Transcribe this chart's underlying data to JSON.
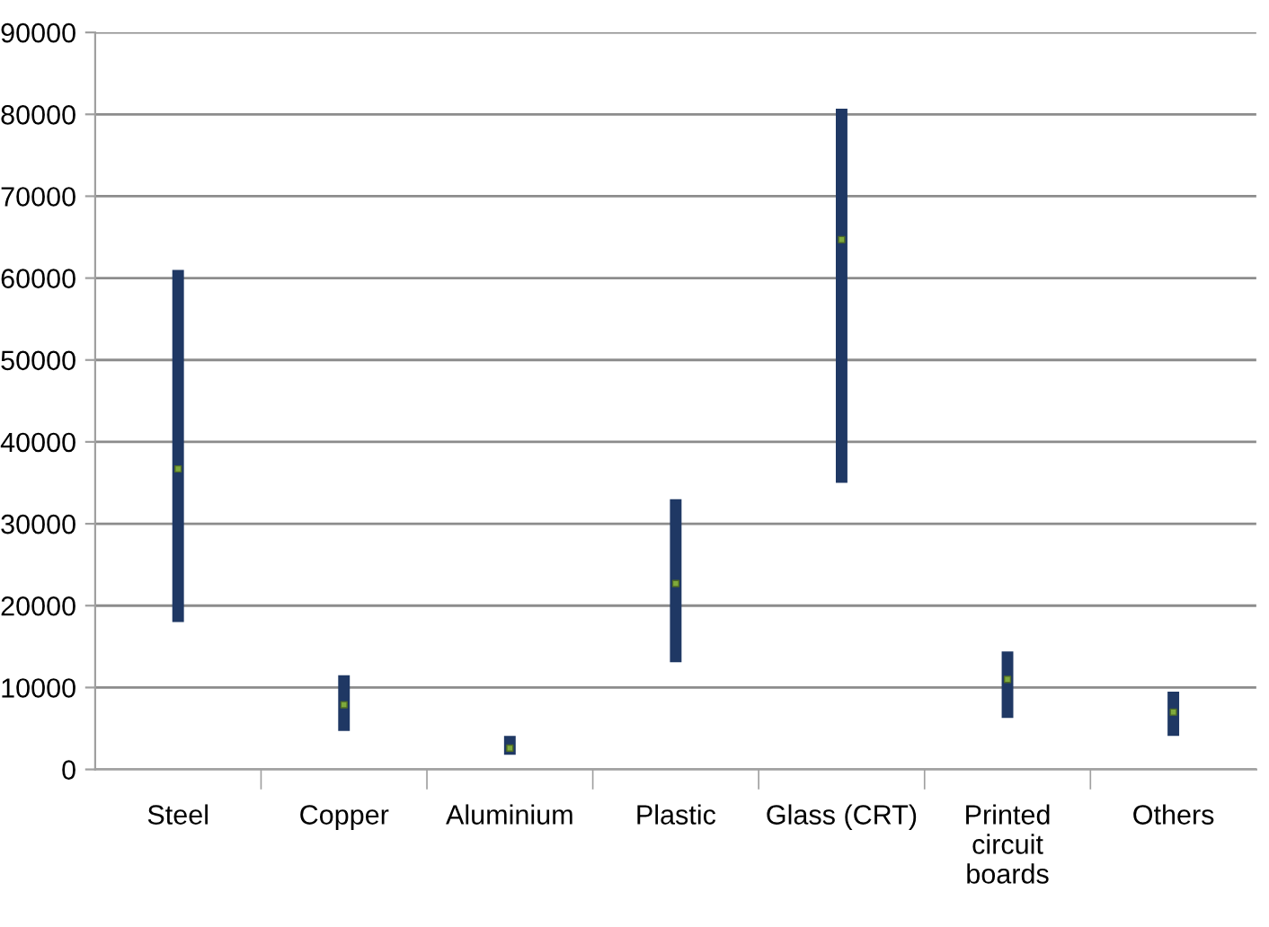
{
  "chart_data": {
    "type": "bar",
    "categories": [
      "Steel",
      "Copper",
      "Aluminium",
      "Plastic",
      "Glass (CRT)",
      "Printed circuit boards",
      "Others"
    ],
    "series": [
      {
        "color": "#1f3864",
        "base": [
          18000,
          4700,
          1800,
          13100,
          35000,
          6300,
          4100
        ],
        "values": [
          43000,
          6800,
          2300,
          19900,
          45700,
          8100,
          5400
        ]
      },
      {
        "type": "scatter",
        "color": "#7faa3c",
        "marker": "square",
        "x": [
          "Steel",
          "Copper",
          "Aluminium",
          "Plastic",
          "Glass (CRT)",
          "Printed circuit boards",
          "Others"
        ],
        "values": [
          36700,
          7900,
          2600,
          22700,
          64700,
          11000,
          7000
        ]
      }
    ],
    "ylim": [
      0,
      90000
    ],
    "yticks": [
      0,
      10000,
      20000,
      30000,
      40000,
      50000,
      60000,
      70000,
      80000,
      90000
    ],
    "grid": "y"
  }
}
